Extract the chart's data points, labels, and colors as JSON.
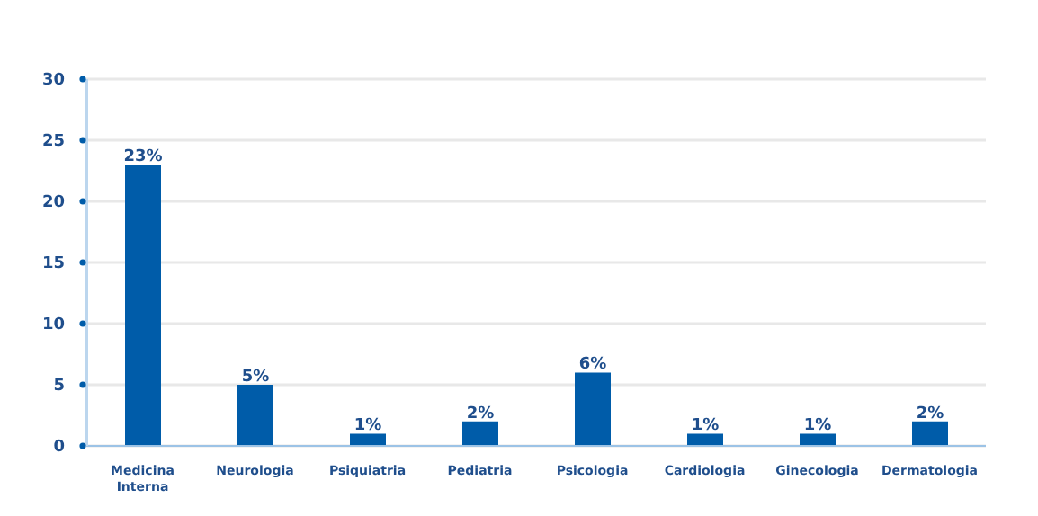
{
  "chart_data": {
    "type": "bar",
    "categories": [
      "Medicina Interna",
      "Neurologia",
      "Psiquiatria",
      "Pediatria",
      "Psicologia",
      "Cardiologia",
      "Ginecologia",
      "Dermatologia"
    ],
    "values": [
      23,
      5,
      1,
      2,
      6,
      1,
      1,
      2
    ],
    "value_labels": [
      "23%",
      "5%",
      "1%",
      "2%",
      "6%",
      "1%",
      "1%",
      "2%"
    ],
    "color": "#005ca9",
    "ylim": [
      0,
      30
    ],
    "yticks": [
      0,
      5,
      10,
      15,
      20,
      25,
      30
    ],
    "grid": "y"
  }
}
